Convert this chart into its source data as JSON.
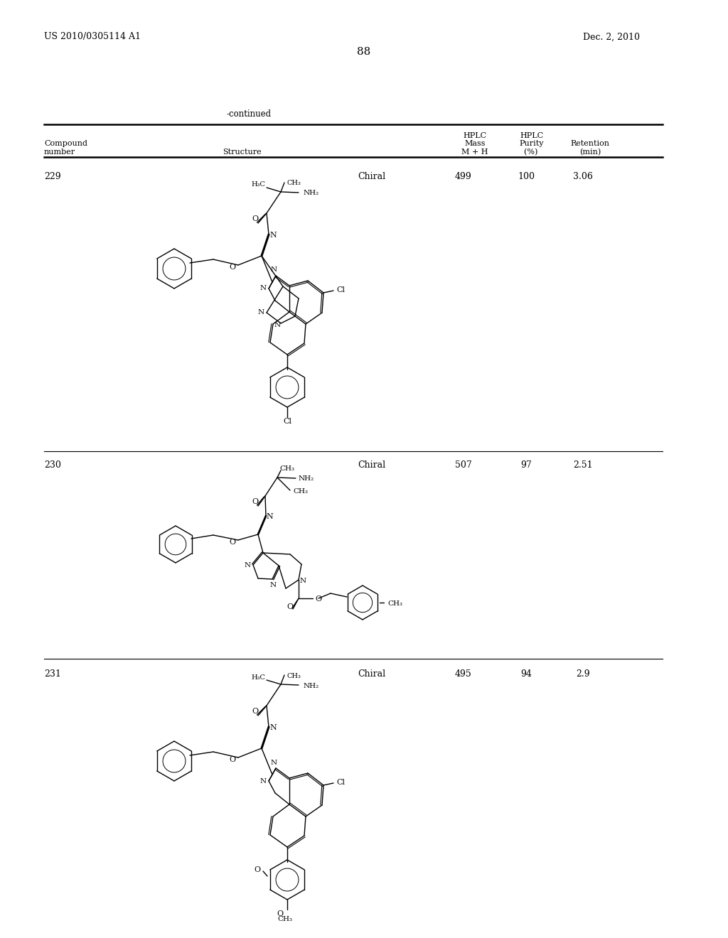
{
  "page_number": "88",
  "patent_number": "US 2010/0305114 A1",
  "patent_date": "Dec. 2, 2010",
  "continued_label": "-continued",
  "background_color": "#ffffff",
  "compounds": [
    {
      "number": "229",
      "chiral": "Chiral",
      "mass": "499",
      "purity": "100",
      "retention": "3.06"
    },
    {
      "number": "230",
      "chiral": "Chiral",
      "mass": "507",
      "purity": "97",
      "retention": "2.51"
    },
    {
      "number": "231",
      "chiral": "Chiral",
      "mass": "495",
      "purity": "94",
      "retention": "2.9"
    }
  ]
}
